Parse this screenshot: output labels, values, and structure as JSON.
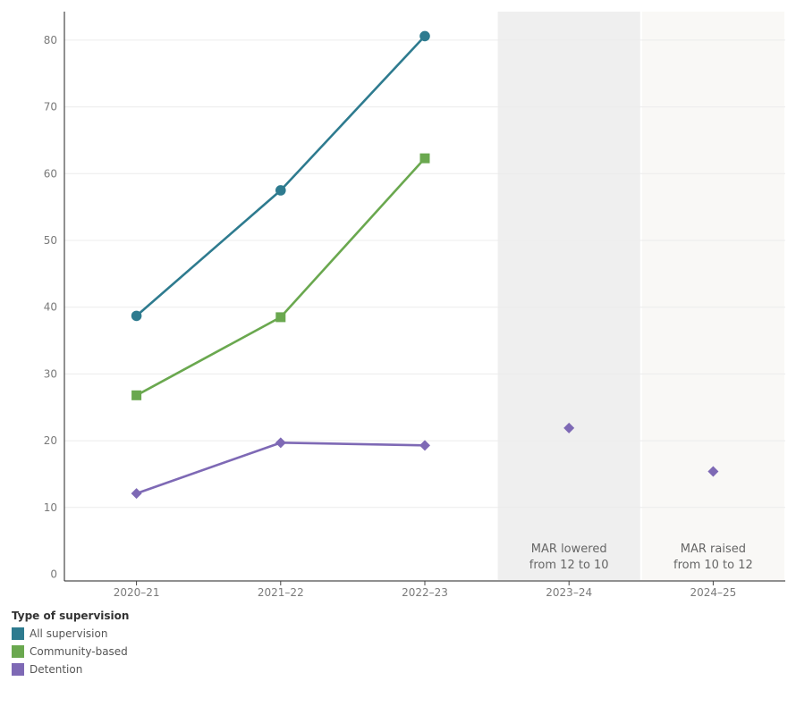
{
  "chart_data": {
    "type": "line",
    "categories": [
      "2020–21",
      "2021–22",
      "2022–23",
      "2023–24",
      "2024–25"
    ],
    "ylim": [
      0,
      85
    ],
    "yticks": [
      0,
      10,
      20,
      30,
      40,
      50,
      60,
      70,
      80
    ],
    "grid": true,
    "legend_position": "bottom-left",
    "legend_title": "Type of supervision",
    "series": [
      {
        "name": "All supervision",
        "color": "#2e7b8f",
        "marker": "circle",
        "values": [
          38.7,
          57.5,
          80.6,
          null,
          null
        ]
      },
      {
        "name": "Community-based",
        "color": "#6aa84f",
        "marker": "square",
        "values": [
          26.8,
          38.5,
          62.3,
          null,
          null
        ]
      },
      {
        "name": "Detention",
        "color": "#7e69b5",
        "marker": "diamond",
        "values": [
          12.1,
          19.7,
          19.3,
          21.9,
          15.4
        ]
      }
    ],
    "bands": [
      {
        "category": "2023–24",
        "label_lines": [
          "MAR lowered",
          "from 12 to 10"
        ],
        "color": "#efefef"
      },
      {
        "category": "2024–25",
        "label_lines": [
          "MAR raised",
          "from 10 to 12"
        ],
        "color": "#f9f8f6"
      }
    ]
  }
}
